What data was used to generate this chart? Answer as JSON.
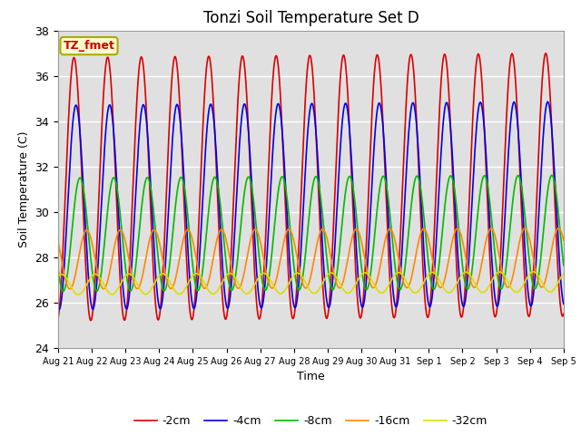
{
  "title": "Tonzi Soil Temperature Set D",
  "xlabel": "Time",
  "ylabel": "Soil Temperature (C)",
  "ylim": [
    24,
    38
  ],
  "annotation_label": "TZ_fmet",
  "legend_labels": [
    "-2cm",
    "-4cm",
    "-8cm",
    "-16cm",
    "-32cm"
  ],
  "line_colors": [
    "#dd0000",
    "#0000ee",
    "#00bb00",
    "#ff8800",
    "#dddd00"
  ],
  "line_widths": [
    1.2,
    1.2,
    1.2,
    1.2,
    1.2
  ],
  "background_color": "#ffffff",
  "plot_bg_color": "#e0e0e0",
  "grid_color": "#ffffff",
  "tick_labels": [
    "Aug 21",
    "Aug 22",
    "Aug 23",
    "Aug 24",
    "Aug 25",
    "Aug 26",
    "Aug 27",
    "Aug 28",
    "Aug 29",
    "Aug 30",
    "Aug 31",
    "Sep 1",
    "Sep 2",
    "Sep 3",
    "Sep 4",
    "Sep 5"
  ],
  "title_fontsize": 12,
  "axis_fontsize": 9,
  "legend_fontsize": 9,
  "figsize": [
    6.4,
    4.8
  ],
  "dpi": 100
}
